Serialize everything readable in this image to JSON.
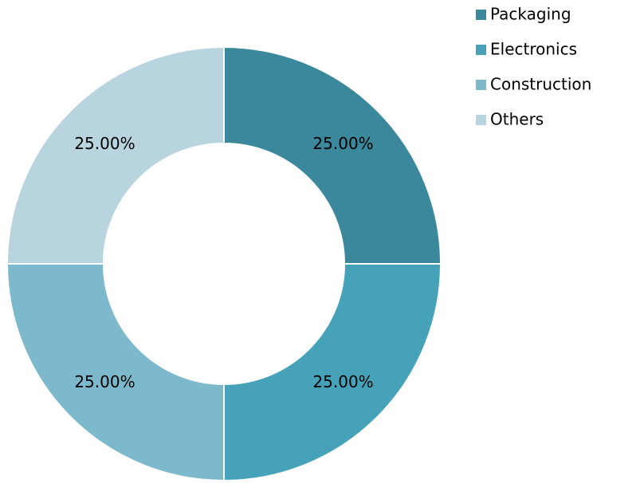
{
  "chart_data": {
    "type": "donut",
    "categories": [
      "Packaging",
      "Electronics",
      "Construction",
      "Others"
    ],
    "values": [
      25,
      25,
      25,
      25
    ],
    "value_labels": [
      "25.00%",
      "25.00%",
      "25.00%",
      "25.00%"
    ],
    "colors": [
      "#3b889c",
      "#46a2b9",
      "#7db9cc",
      "#b7d4df"
    ],
    "legend": "right"
  }
}
